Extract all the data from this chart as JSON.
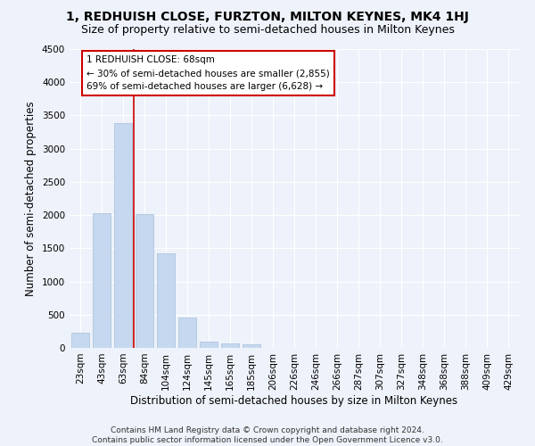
{
  "title": "1, REDHUISH CLOSE, FURZTON, MILTON KEYNES, MK4 1HJ",
  "subtitle": "Size of property relative to semi-detached houses in Milton Keynes",
  "xlabel": "Distribution of semi-detached houses by size in Milton Keynes",
  "ylabel": "Number of semi-detached properties",
  "categories": [
    "23sqm",
    "43sqm",
    "63sqm",
    "84sqm",
    "104sqm",
    "124sqm",
    "145sqm",
    "165sqm",
    "185sqm",
    "206sqm",
    "226sqm",
    "246sqm",
    "266sqm",
    "287sqm",
    "307sqm",
    "327sqm",
    "348sqm",
    "368sqm",
    "388sqm",
    "409sqm",
    "429sqm"
  ],
  "values": [
    230,
    2030,
    3380,
    2020,
    1430,
    460,
    100,
    65,
    55,
    0,
    0,
    0,
    0,
    0,
    0,
    0,
    0,
    0,
    0,
    0,
    0
  ],
  "bar_color": "#c5d8f0",
  "bar_edge_color": "#a8bfd8",
  "annotation_title": "1 REDHUISH CLOSE: 68sqm",
  "annotation_line1": "← 30% of semi-detached houses are smaller (2,855)",
  "annotation_line2": "69% of semi-detached houses are larger (6,628) →",
  "ylim": [
    0,
    4500
  ],
  "yticks": [
    0,
    500,
    1000,
    1500,
    2000,
    2500,
    3000,
    3500,
    4000,
    4500
  ],
  "footer1": "Contains HM Land Registry data © Crown copyright and database right 2024.",
  "footer2": "Contains public sector information licensed under the Open Government Licence v3.0.",
  "background_color": "#eef2fa",
  "grid_color": "#ffffff",
  "annotation_box_color": "#ffffff",
  "annotation_box_edge": "#cc0000",
  "redline_color": "#cc0000",
  "title_fontsize": 10,
  "subtitle_fontsize": 9,
  "axis_label_fontsize": 8.5,
  "tick_fontsize": 7.5,
  "annotation_fontsize": 7.5,
  "footer_fontsize": 6.5
}
